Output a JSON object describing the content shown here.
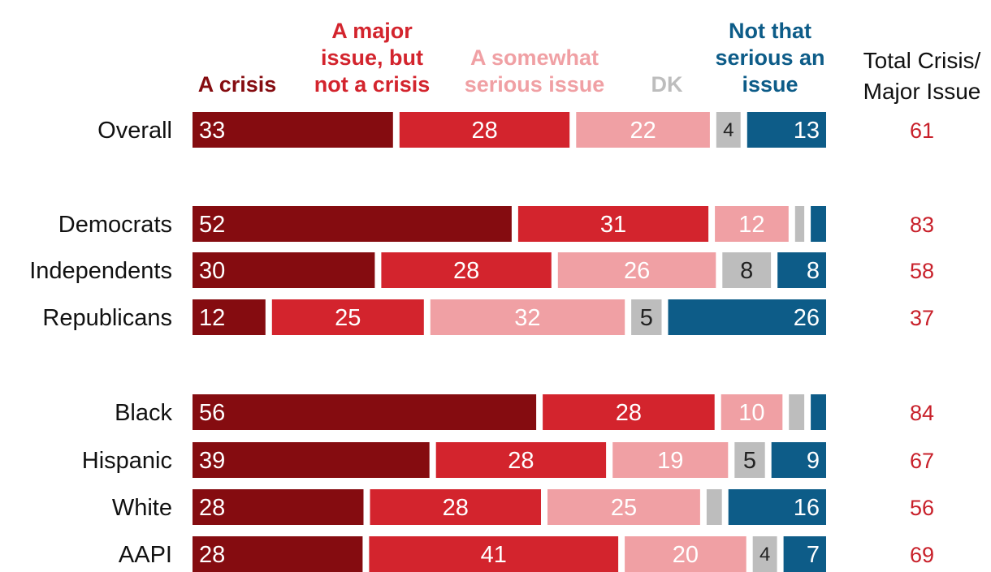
{
  "chart_data": {
    "type": "bar",
    "orientation": "horizontal",
    "stacked": true,
    "series": [
      {
        "name": "A crisis",
        "color": "#850c10",
        "label_color": "#ffffff"
      },
      {
        "name": "A major issue, but not a crisis",
        "color": "#d3242d",
        "label_color": "#ffffff"
      },
      {
        "name": "A somewhat serious issue",
        "color": "#f0a0a4",
        "label_color": "#ffffff"
      },
      {
        "name": "DK",
        "color": "#bdbdbd",
        "label_color": "#222222"
      },
      {
        "name": "Not that serious an issue",
        "color": "#0d5c88",
        "label_color": "#ffffff"
      }
    ],
    "legend_lines": [
      [
        "A crisis"
      ],
      [
        "A major",
        "issue, but",
        "not a crisis"
      ],
      [
        "A somewhat",
        "serious issue"
      ],
      [
        "DK"
      ],
      [
        "Not that",
        "serious an",
        "issue"
      ]
    ],
    "total_header": [
      "Total Crisis/",
      "Major Issue"
    ],
    "rows": [
      {
        "label": "Overall",
        "values": [
          33,
          28,
          22,
          4,
          13
        ],
        "labels": [
          "33",
          "28",
          "22",
          "4",
          "13"
        ],
        "total": "61"
      },
      {
        "label": "Democrats",
        "values": [
          52,
          31,
          12,
          1.5,
          2.5
        ],
        "labels": [
          "52",
          "31",
          "12",
          "",
          ""
        ],
        "total": "83"
      },
      {
        "label": "Independents",
        "values": [
          30,
          28,
          26,
          8,
          8
        ],
        "labels": [
          "30",
          "28",
          "26",
          "8",
          "8"
        ],
        "total": "58"
      },
      {
        "label": "Republicans",
        "values": [
          12,
          25,
          32,
          5,
          26
        ],
        "labels": [
          "12",
          "25",
          "32",
          "5",
          "26"
        ],
        "total": "37"
      },
      {
        "label": "Black",
        "values": [
          56,
          28,
          10,
          2.5,
          2.5
        ],
        "labels": [
          "56",
          "28",
          "10",
          "",
          ""
        ],
        "total": "84"
      },
      {
        "label": "Hispanic",
        "values": [
          39,
          28,
          19,
          5,
          9
        ],
        "labels": [
          "39",
          "28",
          "19",
          "5",
          "9"
        ],
        "total": "67"
      },
      {
        "label": "White",
        "values": [
          28,
          28,
          25,
          2.5,
          16
        ],
        "labels": [
          "28",
          "28",
          "25",
          "",
          "16"
        ],
        "total": "56"
      },
      {
        "label": "AAPI",
        "values": [
          28,
          41,
          20,
          4,
          7
        ],
        "labels": [
          "28",
          "41",
          "20",
          "4",
          "7"
        ],
        "total": "69"
      }
    ]
  }
}
